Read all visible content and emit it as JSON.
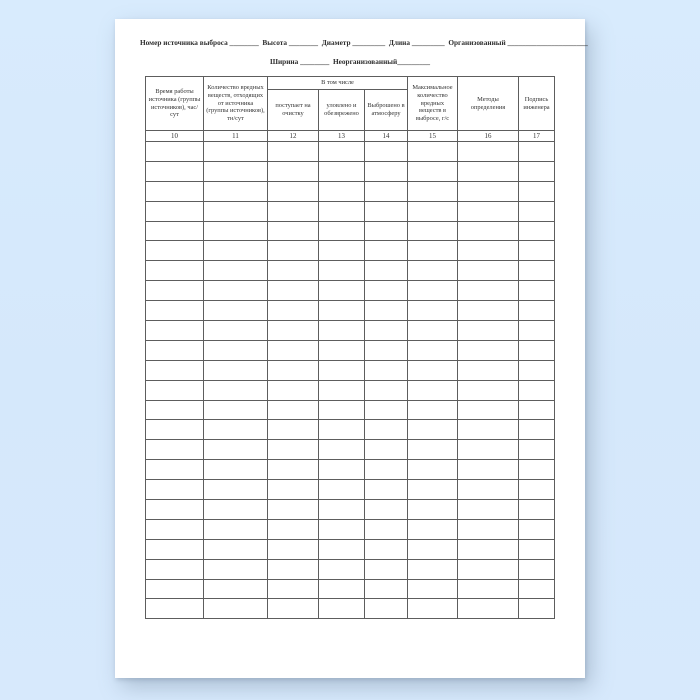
{
  "colors": {
    "background_blue": "#d6e9fb",
    "page_white": "#ffffff",
    "ink_text": "#333333",
    "grid_border": "#5d5d5d"
  },
  "header": {
    "line1": "Номер источника выброса ________  Высота ________  Диаметр _________  Длина _________  Организованный ______________________",
    "line2": "Ширина ________  Неорганизованный_________"
  },
  "table": {
    "group_header": "В том числе",
    "columns": [
      {
        "title": "Время работы источника (группы источников), час/сут",
        "number": "10"
      },
      {
        "title": "Количество вредных веществ, отходящих от источника (группы источников), тн/сут",
        "number": "11"
      },
      {
        "title": "поступает на очистку",
        "number": "12",
        "group": "В том числе"
      },
      {
        "title": "уловлено и обезврежено",
        "number": "13",
        "group": "В том числе"
      },
      {
        "title": "Выброшено в атмосферу",
        "number": "14",
        "group": "В том числе"
      },
      {
        "title": "Максимальное количество вредных веществ в выбросе, г/с",
        "number": "15"
      },
      {
        "title": "Методы определения",
        "number": "16"
      },
      {
        "title": "Подпись инженера",
        "number": "17"
      }
    ],
    "empty_row_count": 24,
    "cell_values": []
  }
}
